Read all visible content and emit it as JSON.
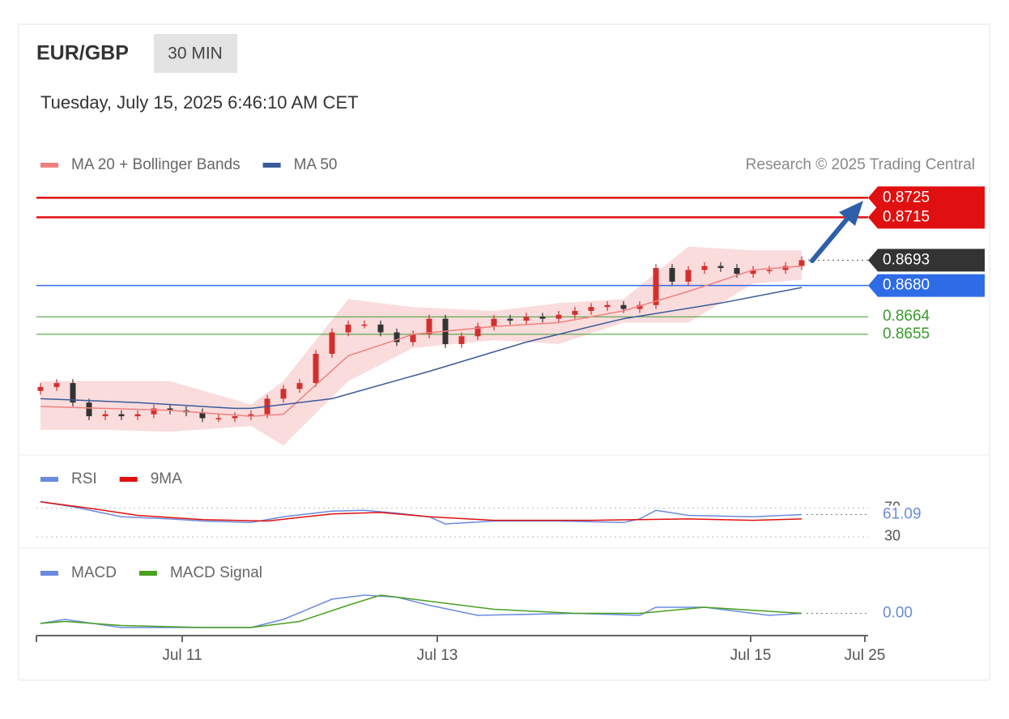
{
  "header": {
    "symbol": "EUR/GBP",
    "interval": "30 MIN",
    "timestamp": "Tuesday, July 15, 2025 6:46:10 AM CET"
  },
  "chart_data": [
    {
      "type": "candlestick",
      "credit": "Research © 2025 Trading Central",
      "xlim": [
        -0.25,
        51
      ],
      "ylim": [
        0.8596,
        0.8733
      ],
      "up_color": "#d32f2f",
      "down_color": "#333333",
      "open": [
        0.8626,
        0.8628,
        0.863,
        0.862,
        0.8613,
        0.8614,
        0.8613,
        0.8614,
        0.8617,
        0.8616,
        0.8615,
        0.8612,
        0.8612,
        0.8613,
        0.8614,
        0.8622,
        0.8627,
        0.863,
        0.8645,
        0.8656,
        0.866,
        0.866,
        0.8656,
        0.8651,
        0.8655,
        0.8663,
        0.865,
        0.8654,
        0.8659,
        0.8663,
        0.8662,
        0.8664,
        0.8663,
        0.8665,
        0.8667,
        0.8669,
        0.867,
        0.8668,
        0.867,
        0.8689,
        0.8682,
        0.8688,
        0.869,
        0.8689,
        0.8686,
        0.8688,
        0.8688,
        0.869
      ],
      "high": [
        0.863,
        0.8632,
        0.8632,
        0.8622,
        0.8616,
        0.8616,
        0.8616,
        0.8619,
        0.8619,
        0.8618,
        0.8617,
        0.8614,
        0.8615,
        0.8616,
        0.8624,
        0.8629,
        0.8632,
        0.8647,
        0.8658,
        0.8662,
        0.8662,
        0.8662,
        0.8658,
        0.8657,
        0.8665,
        0.8665,
        0.8656,
        0.8661,
        0.8665,
        0.8665,
        0.8666,
        0.8666,
        0.8667,
        0.8669,
        0.8671,
        0.8672,
        0.8672,
        0.8672,
        0.8691,
        0.8691,
        0.869,
        0.8692,
        0.8692,
        0.8691,
        0.869,
        0.869,
        0.8692,
        0.8695
      ],
      "low": [
        0.8624,
        0.8626,
        0.8618,
        0.8611,
        0.8611,
        0.8611,
        0.8611,
        0.8612,
        0.8614,
        0.8613,
        0.861,
        0.861,
        0.861,
        0.8611,
        0.8612,
        0.862,
        0.8625,
        0.8628,
        0.8643,
        0.8654,
        0.8658,
        0.8654,
        0.8649,
        0.8649,
        0.8653,
        0.8648,
        0.8648,
        0.8652,
        0.8657,
        0.866,
        0.866,
        0.8661,
        0.8661,
        0.8663,
        0.8665,
        0.8667,
        0.8666,
        0.8666,
        0.8668,
        0.868,
        0.868,
        0.8686,
        0.8687,
        0.8684,
        0.8684,
        0.8686,
        0.8686,
        0.8688
      ],
      "close": [
        0.8628,
        0.863,
        0.862,
        0.8613,
        0.8614,
        0.8613,
        0.8614,
        0.8617,
        0.8616,
        0.8615,
        0.8612,
        0.8612,
        0.8613,
        0.8614,
        0.8622,
        0.8627,
        0.863,
        0.8645,
        0.8656,
        0.866,
        0.866,
        0.8656,
        0.8651,
        0.8655,
        0.8663,
        0.865,
        0.8654,
        0.8659,
        0.8663,
        0.8662,
        0.8664,
        0.8663,
        0.8665,
        0.8667,
        0.8669,
        0.867,
        0.8668,
        0.867,
        0.8689,
        0.8682,
        0.8688,
        0.869,
        0.8689,
        0.8686,
        0.8688,
        0.8688,
        0.869,
        0.8693
      ],
      "bands": {
        "color": "#fadcdc",
        "x": [
          0,
          4,
          8,
          13,
          15,
          19,
          23,
          28,
          32,
          36,
          40,
          44,
          47
        ],
        "upper": [
          0.8631,
          0.8631,
          0.8631,
          0.8619,
          0.8631,
          0.8673,
          0.8669,
          0.8667,
          0.8671,
          0.8673,
          0.87,
          0.8698,
          0.8698
        ],
        "lower": [
          0.8606,
          0.8606,
          0.8605,
          0.8608,
          0.8598,
          0.8631,
          0.8648,
          0.8652,
          0.865,
          0.8661,
          0.8661,
          0.8681,
          0.8683
        ]
      },
      "series": [
        {
          "name": "MA 20 + Bollinger Bands",
          "color": "#f08080",
          "x": [
            0,
            4,
            8,
            13,
            15,
            19,
            23,
            28,
            32,
            36,
            40,
            44,
            47
          ],
          "values": [
            0.8618,
            0.8617,
            0.8616,
            0.8613,
            0.8614,
            0.8644,
            0.8655,
            0.8659,
            0.8661,
            0.8667,
            0.8677,
            0.8688,
            0.869
          ]
        },
        {
          "name": "MA 50",
          "color": "#3a5a9a",
          "x": [
            0,
            6,
            12,
            13,
            18,
            24,
            30,
            36,
            42,
            47
          ],
          "values": [
            0.8622,
            0.862,
            0.8617,
            0.8617,
            0.8622,
            0.8636,
            0.8651,
            0.8663,
            0.8671,
            0.8679
          ]
        }
      ],
      "levels": [
        {
          "value": 0.8725,
          "color": "#e01010",
          "style": "tag"
        },
        {
          "value": 0.8715,
          "color": "#e01010",
          "style": "tag"
        },
        {
          "value": 0.868,
          "label": "0.8680",
          "color": "#2e6be6",
          "style": "tag"
        },
        {
          "value": 0.8664,
          "color": "#3a9a2a",
          "style": "text"
        },
        {
          "value": 0.8655,
          "color": "#3a9a2a",
          "style": "text"
        }
      ],
      "last_price": {
        "value": 0.8693,
        "color": "#333333"
      }
    },
    {
      "type": "line",
      "xlim": [
        -0.25,
        51
      ],
      "ylim": [
        22,
        90
      ],
      "yticks": [
        30,
        70
      ],
      "series": [
        {
          "name": "RSI",
          "color": "#6a8be0",
          "x": [
            0,
            2,
            5,
            8,
            10,
            13,
            15,
            18,
            20,
            22,
            24,
            25,
            28,
            32,
            36,
            37,
            38,
            40,
            44,
            47
          ],
          "values": [
            79,
            72,
            58,
            55,
            52,
            50,
            58,
            66,
            67,
            63,
            58,
            48,
            52,
            52,
            50,
            55,
            67,
            60,
            58,
            61.09
          ]
        },
        {
          "name": "9MA",
          "color": "#e01010",
          "x": [
            0,
            3,
            6,
            10,
            14,
            18,
            21,
            24,
            28,
            34,
            40,
            44,
            47
          ],
          "values": [
            79,
            70,
            60,
            54,
            52,
            62,
            64,
            58,
            53,
            53,
            55,
            53,
            55
          ]
        }
      ],
      "current": 61.09,
      "current_color": "#6a8be0"
    },
    {
      "type": "line",
      "xlim": [
        -0.25,
        51
      ],
      "ylim": [
        -0.0009,
        0.0013
      ],
      "xticks": [
        {
          "value": 8.75,
          "label": "Jul 11"
        },
        {
          "value": 24.5,
          "label": "Jul 13"
        },
        {
          "value": 43.85,
          "label": "Jul 15"
        },
        {
          "value": 50.9,
          "label": "Jul 25"
        }
      ],
      "series": [
        {
          "name": "MACD",
          "color": "#6a8be0",
          "x": [
            0,
            1.5,
            5,
            10,
            13,
            15,
            18,
            20,
            22,
            24,
            27,
            33,
            37,
            38,
            41,
            45,
            47
          ],
          "values": [
            -0.0005,
            -0.0003,
            -0.0007,
            -0.0007,
            -0.0007,
            -0.0003,
            0.0007,
            0.0009,
            0.0008,
            0.0004,
            -0.0001,
            0,
            -0.0001,
            0.0003,
            0.0003,
            -0.0001,
            0
          ]
        },
        {
          "name": "MACD Signal",
          "color": "#4aa020",
          "x": [
            0,
            1.5,
            5,
            10,
            13,
            16,
            19,
            21,
            24,
            28,
            33,
            37,
            41,
            45,
            47
          ],
          "values": [
            -0.0005,
            -0.0004,
            -0.0006,
            -0.0007,
            -0.0007,
            -0.0004,
            0.0004,
            0.0009,
            0.0006,
            0.0002,
            0,
            0,
            0.0003,
            0.0001,
            0
          ]
        }
      ],
      "current": 0,
      "current_label": "0.00",
      "current_color": "#6a8be0"
    }
  ]
}
